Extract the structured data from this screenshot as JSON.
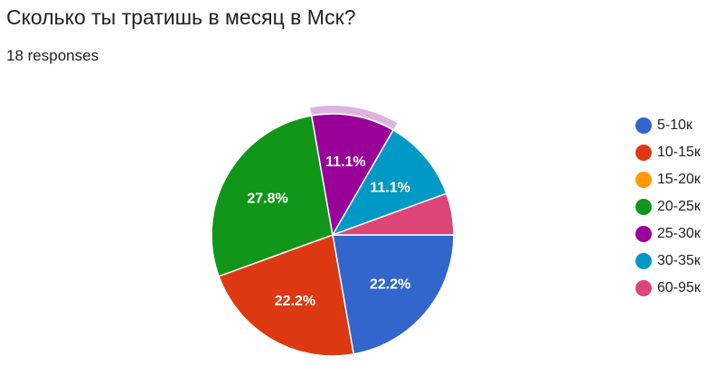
{
  "title": "Сколько ты тратишь в месяц в Мск?",
  "subtitle": "18 responses",
  "chart_data": {
    "type": "pie",
    "title": "Сколько ты тратишь в месяц в Мск?",
    "total_responses": 18,
    "categories": [
      "5-10к",
      "10-15к",
      "15-20к",
      "20-25к",
      "25-30к",
      "30-35к",
      "60-95к"
    ],
    "values": [
      4,
      4,
      0,
      5,
      2,
      2,
      1
    ],
    "percent_labels": [
      "22.2%",
      "22.2%",
      "",
      "27.8%",
      "11.1%",
      "11.1%",
      ""
    ],
    "colors": [
      "#3366cc",
      "#dc3912",
      "#ff9900",
      "#109618",
      "#990099",
      "#0099c6",
      "#dd4477"
    ],
    "highlighted_slice": "25-30к",
    "legend_position": "right"
  }
}
